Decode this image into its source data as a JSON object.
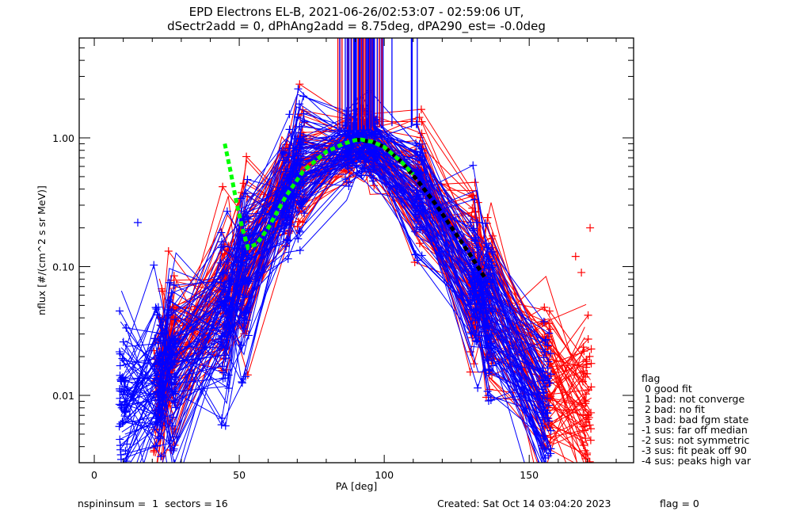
{
  "chart_data": {
    "type": "line",
    "title": [
      "EPD Electrons EL-B, 2021-06-26/02:53:07 - 02:59:06 UT,",
      "dSectr2add = 0, dPhAng2add = 8.75deg, dPA290_est=  -0.0deg"
    ],
    "xlabel": "PA [deg]",
    "ylabel": "nflux [#/(cm^2 s sr MeV)]",
    "xlim": [
      -5.2,
      186
    ],
    "ylim": [
      0.003,
      5.96
    ],
    "yscale": "log",
    "x_ticks": [
      0,
      50,
      100,
      150
    ],
    "x_tick_labels": [
      "0",
      "50",
      "100",
      "150"
    ],
    "y_ticks": [
      0.01,
      0.1,
      1.0
    ],
    "y_tick_labels": [
      "0.01",
      "0.10",
      "1.00"
    ],
    "grid": false,
    "colors": {
      "red_series": "#ff0000",
      "blue_series": "#0000ff",
      "fit_green": "#00ff00",
      "fit_black": "#000000"
    },
    "pa_bins": [
      10,
      22,
      27,
      45,
      52,
      66,
      71,
      88,
      92,
      96,
      112,
      131,
      136,
      156,
      170
    ],
    "series_summary": [
      {
        "name": "red traces (typical)",
        "color": "red",
        "pa": [
          22,
          27,
          45,
          52,
          66,
          71,
          88,
          92,
          96,
          112,
          131,
          136,
          156,
          170
        ],
        "median": [
          0.012,
          0.02,
          0.05,
          0.12,
          0.45,
          0.6,
          0.88,
          0.95,
          0.85,
          0.45,
          0.1,
          0.05,
          0.012,
          0.007
        ]
      },
      {
        "name": "blue traces (typical)",
        "color": "blue",
        "pa": [
          10,
          22,
          27,
          45,
          52,
          66,
          71,
          88,
          92,
          96,
          112,
          131,
          136,
          156
        ],
        "median": [
          0.01,
          0.012,
          0.018,
          0.04,
          0.1,
          0.35,
          0.55,
          0.88,
          0.95,
          0.85,
          0.4,
          0.08,
          0.04,
          0.008
        ]
      }
    ],
    "vertical_spikes": {
      "pa_range": [
        84,
        113
      ],
      "from": 1.2,
      "to": 5.96
    },
    "outliers": [
      {
        "pa": 15,
        "value": 0.22,
        "color": "blue"
      },
      {
        "pa": 171,
        "value": 0.2,
        "color": "red"
      },
      {
        "pa": 166,
        "value": 0.12,
        "color": "red"
      },
      {
        "pa": 168,
        "value": 0.09,
        "color": "red"
      }
    ],
    "fit_green": {
      "pa": [
        45,
        47,
        49,
        51,
        53,
        56,
        60,
        66,
        72,
        80,
        86,
        90,
        92,
        96,
        100,
        106,
        110
      ],
      "value": [
        0.9,
        0.55,
        0.32,
        0.2,
        0.14,
        0.15,
        0.2,
        0.35,
        0.55,
        0.78,
        0.9,
        0.96,
        0.97,
        0.93,
        0.85,
        0.65,
        0.52
      ]
    },
    "fit_black": {
      "pa": [
        90,
        96,
        100,
        106,
        112,
        118,
        124,
        130,
        135
      ],
      "value": [
        0.97,
        0.93,
        0.85,
        0.65,
        0.45,
        0.3,
        0.19,
        0.12,
        0.08
      ]
    },
    "legend": {
      "placement": "right",
      "title": "flag",
      "entries": [
        " 0 good fit",
        " 1 bad: not converge",
        " 2 bad: no fit",
        " 3 bad: bad fgm state",
        "-1 sus: far off median",
        "-2 sus: not symmetric",
        "-3 sus: fit peak off 90",
        "-4 sus: peaks high var"
      ]
    }
  },
  "footer": {
    "left": "nspininsum =  1  sectors = 16",
    "created": "Created: Sat Oct 14 03:04:20 2023",
    "flag": "flag = 0"
  }
}
